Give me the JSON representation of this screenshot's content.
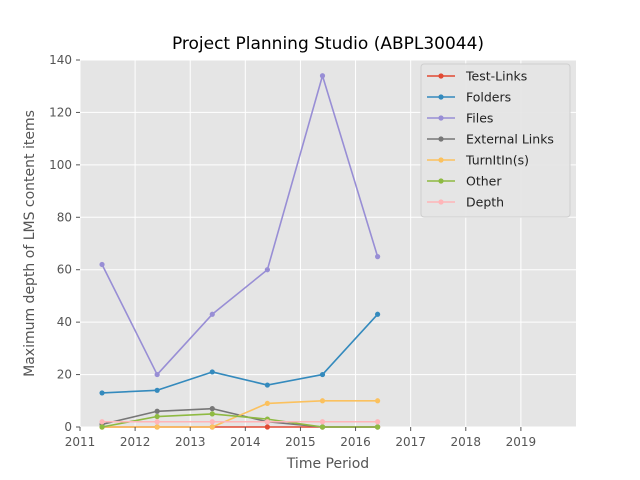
{
  "chart_data": {
    "type": "line",
    "title": "Project Planning Studio (ABPL30044)",
    "xlabel": "Time Period",
    "ylabel": "Maximum depth of LMS content items",
    "xlim": [
      2011,
      2020
    ],
    "ylim": [
      0,
      140
    ],
    "x_ticks": [
      "2011",
      "2012",
      "2013",
      "2014",
      "2015",
      "2016",
      "2017",
      "2018",
      "2019"
    ],
    "y_ticks": [
      "0",
      "20",
      "40",
      "60",
      "80",
      "100",
      "120",
      "140"
    ],
    "grid": true,
    "legend_position": "top-right",
    "x": [
      2011.4,
      2012.4,
      2013.4,
      2014.4,
      2015.4,
      2016.4
    ],
    "series": [
      {
        "name": "Test-Links",
        "color": "#e24a33",
        "values": [
          0,
          0,
          0,
          0,
          0,
          0
        ]
      },
      {
        "name": "Folders",
        "color": "#348abd",
        "values": [
          13,
          14,
          21,
          16,
          20,
          43
        ]
      },
      {
        "name": "Files",
        "color": "#988ed5",
        "values": [
          62,
          20,
          43,
          60,
          134,
          65
        ]
      },
      {
        "name": "External Links",
        "color": "#777777",
        "values": [
          1,
          6,
          7,
          2,
          0,
          0
        ]
      },
      {
        "name": "TurnItIn(s)",
        "color": "#fbc15e",
        "values": [
          0,
          0,
          0,
          9,
          10,
          10
        ]
      },
      {
        "name": "Other",
        "color": "#8eba42",
        "values": [
          0,
          4,
          5,
          3,
          0,
          0
        ]
      },
      {
        "name": "Depth",
        "color": "#ffb5b8",
        "values": [
          2,
          2,
          2,
          2,
          2,
          2
        ]
      }
    ]
  }
}
